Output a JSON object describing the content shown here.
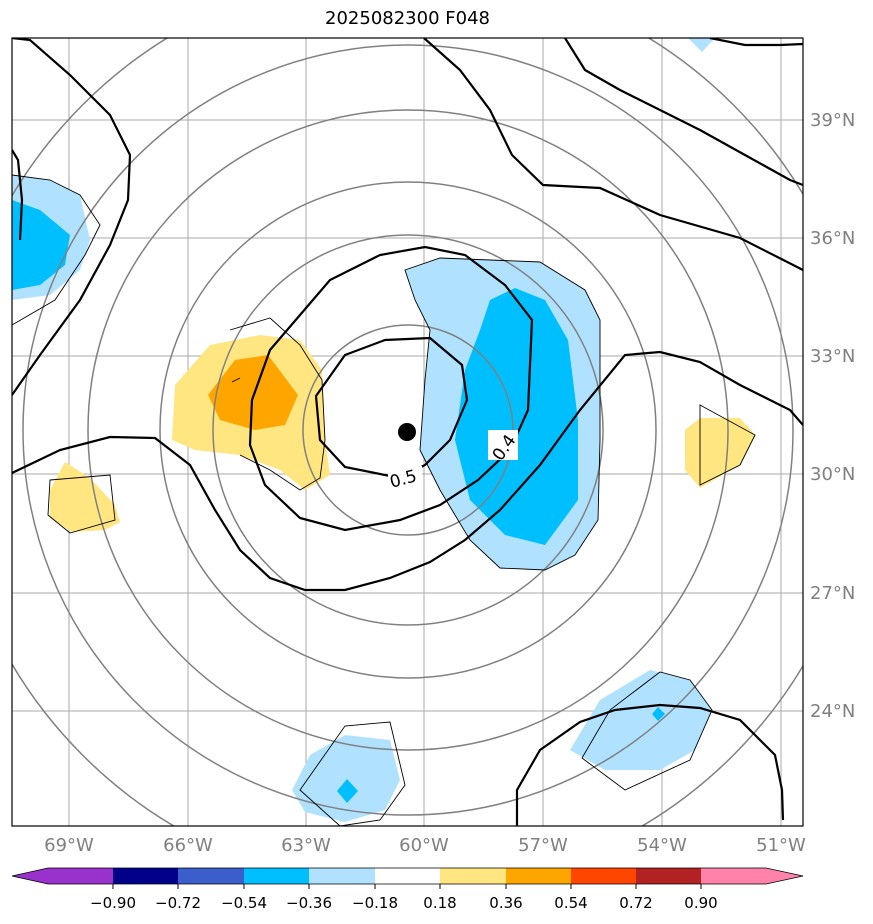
{
  "title": "2025082300 F048",
  "map": {
    "lon_labels": [
      "69°W",
      "66°W",
      "63°W",
      "60°W",
      "57°W",
      "54°W",
      "51°W"
    ],
    "lat_labels": [
      "39°N",
      "36°N",
      "33°N",
      "30°N",
      "27°N",
      "24°N"
    ],
    "contour_labels": [
      "0.5",
      "0.4"
    ],
    "center_marker": "storm-center-dot"
  },
  "colorbar": {
    "ticks": [
      "−0.90",
      "−0.72",
      "−0.54",
      "−0.36",
      "−0.18",
      "0.18",
      "0.36",
      "0.54",
      "0.72",
      "0.90"
    ],
    "colors": [
      "#9932cc",
      "#00008b",
      "#3a5fcd",
      "#00bfff",
      "#b0e2ff",
      "#ffffff",
      "#ffe680",
      "#ffa500",
      "#ff4500",
      "#b22222",
      "#ff82ab"
    ]
  },
  "colors": {
    "grid": "#aaaaaa",
    "thin_contour": "#808080",
    "thick_contour": "#000000",
    "light_blue": "#b0e2ff",
    "blue": "#00bfff",
    "light_yellow": "#ffe680",
    "orange": "#ffa500"
  }
}
